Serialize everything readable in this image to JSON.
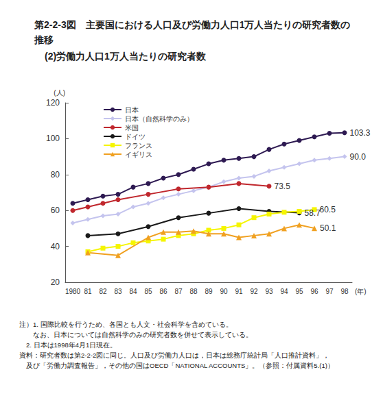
{
  "chart_data": {
    "type": "line",
    "title": "第2-2-3図　主要国における人口及び労働力人口1万人当たりの研究者数の推移",
    "subtitle": "(2)労働力人口1万人当たりの研究者数",
    "y_label": "(人)",
    "x_label": "(年)",
    "categories": [
      "1980",
      "81",
      "82",
      "83",
      "84",
      "85",
      "86",
      "87",
      "88",
      "89",
      "90",
      "91",
      "92",
      "93",
      "94",
      "95",
      "96",
      "97",
      "98"
    ],
    "ylim": [
      20,
      120
    ],
    "yticks": [
      20,
      40,
      60,
      80,
      100,
      120
    ],
    "grid": false,
    "legend": "upper left",
    "series": [
      {
        "name": "日本",
        "color": "#2e1a52",
        "marker": "circle",
        "values": [
          64,
          66,
          68,
          69,
          73,
          75,
          78,
          80,
          83,
          86,
          88,
          89,
          90,
          94,
          97,
          99,
          101,
          103,
          103.3
        ],
        "value_labels": [
          null,
          null,
          null,
          null,
          null,
          null,
          null,
          null,
          null,
          null,
          null,
          null,
          null,
          null,
          null,
          null,
          null,
          null,
          "103.3"
        ]
      },
      {
        "name": "日本（自然科学のみ）",
        "color": "#c4c4ee",
        "marker": "diamond",
        "values": [
          53,
          55,
          57,
          58,
          62,
          64,
          67,
          69,
          71,
          73,
          76,
          78,
          79,
          82,
          84,
          86,
          88,
          89,
          90.0
        ],
        "value_labels": [
          null,
          null,
          null,
          null,
          null,
          null,
          null,
          null,
          null,
          null,
          null,
          null,
          null,
          null,
          null,
          null,
          null,
          null,
          "90.0"
        ]
      },
      {
        "name": "米国",
        "color": "#c0272d",
        "marker": "circle",
        "values": [
          60,
          62,
          64,
          66,
          null,
          69,
          null,
          72,
          null,
          73,
          null,
          75,
          null,
          73.5,
          null,
          null,
          null,
          null,
          null
        ],
        "value_labels": [
          null,
          null,
          null,
          null,
          null,
          null,
          null,
          null,
          null,
          null,
          null,
          null,
          null,
          "73.5",
          null,
          null,
          null,
          null,
          null
        ]
      },
      {
        "name": "ドイツ",
        "color": "#1a1a1a",
        "marker": "circle",
        "values": [
          null,
          46,
          null,
          47,
          null,
          51,
          null,
          56,
          null,
          58.5,
          null,
          61,
          null,
          59.5,
          null,
          58.7,
          null,
          null,
          null
        ],
        "value_labels": [
          null,
          null,
          null,
          null,
          null,
          null,
          null,
          null,
          null,
          null,
          null,
          null,
          null,
          null,
          null,
          "58.7",
          null,
          null,
          null
        ]
      },
      {
        "name": "フランス",
        "color": "#f5f500",
        "marker": "square",
        "values": [
          null,
          37,
          39,
          40,
          42,
          43,
          44,
          46,
          47,
          49,
          50,
          52,
          56,
          58,
          59,
          59.5,
          60.5,
          null,
          null
        ],
        "value_labels": [
          null,
          null,
          null,
          null,
          null,
          null,
          null,
          null,
          null,
          null,
          null,
          null,
          null,
          null,
          null,
          null,
          "60.5",
          null,
          null
        ]
      },
      {
        "name": "イギリス",
        "color": "#f0a020",
        "marker": "triangle",
        "values": [
          null,
          36.5,
          null,
          35,
          null,
          45,
          48,
          48,
          48.5,
          47,
          47,
          45,
          46,
          47,
          50,
          52,
          50.1,
          null,
          null
        ],
        "value_labels": [
          null,
          null,
          null,
          null,
          null,
          null,
          null,
          null,
          null,
          null,
          null,
          null,
          null,
          null,
          null,
          null,
          "50.1",
          null,
          null
        ]
      }
    ],
    "notes": [
      "注）1. 国際比較を行うため、各国とも人文・社会科学を含めている。",
      "　　なお、日本については自然科学のみの研究者数を併せて表示している。",
      "　2. 日本は1998年4月1日現在。",
      "資料：研究者数は第2-2-2図に同じ。人口及び労働力人口は，日本は総務庁統計局「人口推計資料」，",
      "　及び「労働力調査報告」，その他の国はOECD「NATIONAL ACCOUNTS」。（参照：付属資料5.(1)）"
    ]
  }
}
